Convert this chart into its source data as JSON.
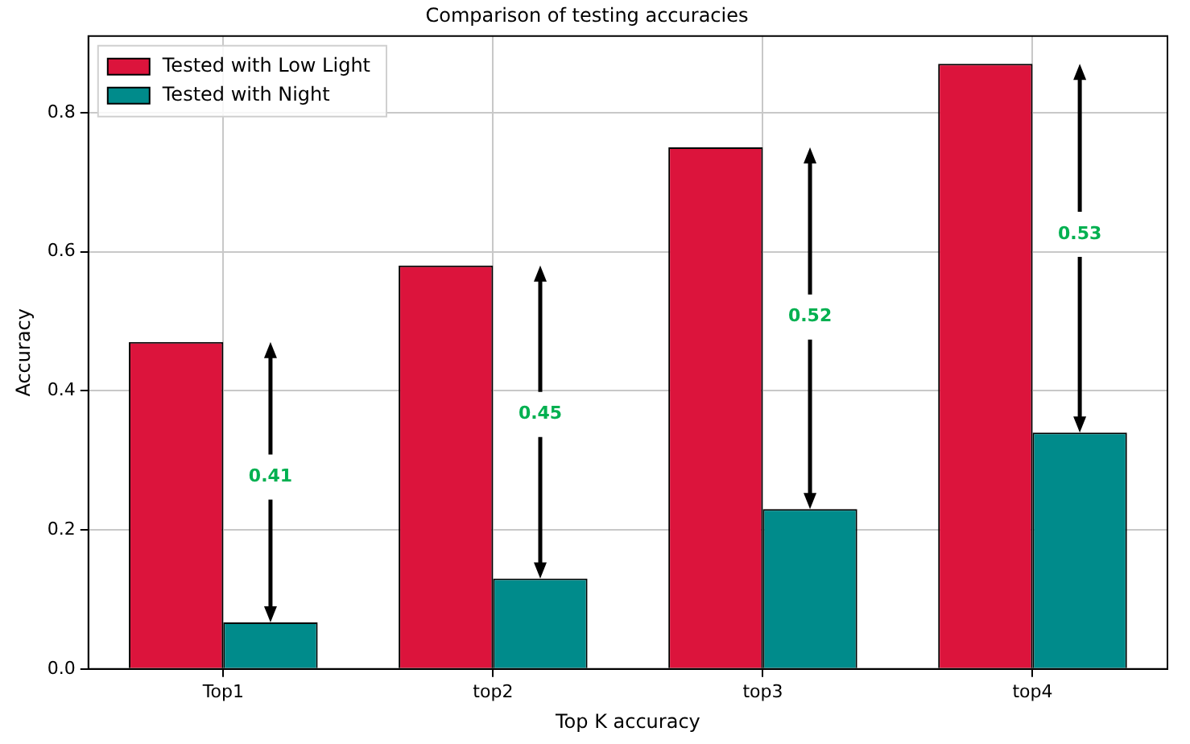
{
  "chart_data": {
    "type": "bar",
    "title": "Comparison of testing accuracies",
    "xlabel": "Top K accuracy",
    "ylabel": "Accuracy",
    "categories": [
      "Top1",
      "top2",
      "top3",
      "top4"
    ],
    "series": [
      {
        "name": "Tested with Low Light",
        "color": "#dc143c",
        "values": [
          0.47,
          0.58,
          0.75,
          0.87
        ]
      },
      {
        "name": "Tested with Night",
        "color": "#008b8b",
        "values": [
          0.067,
          0.13,
          0.23,
          0.34
        ]
      }
    ],
    "ylim": [
      0,
      0.91
    ],
    "yticks": [
      {
        "value": 0,
        "label": "0.0"
      },
      0.2,
      0.4,
      0.6,
      0.8
    ],
    "grid": true,
    "legend": "top left",
    "annotations": [
      {
        "text": "0.41",
        "x": "Top1",
        "y": 0.276
      },
      {
        "text": "0.45",
        "x": "top2",
        "y": 0.366
      },
      {
        "text": "0.52",
        "x": "top3",
        "y": 0.506
      },
      {
        "text": "0.53",
        "x": "top4",
        "y": 0.625
      }
    ]
  }
}
